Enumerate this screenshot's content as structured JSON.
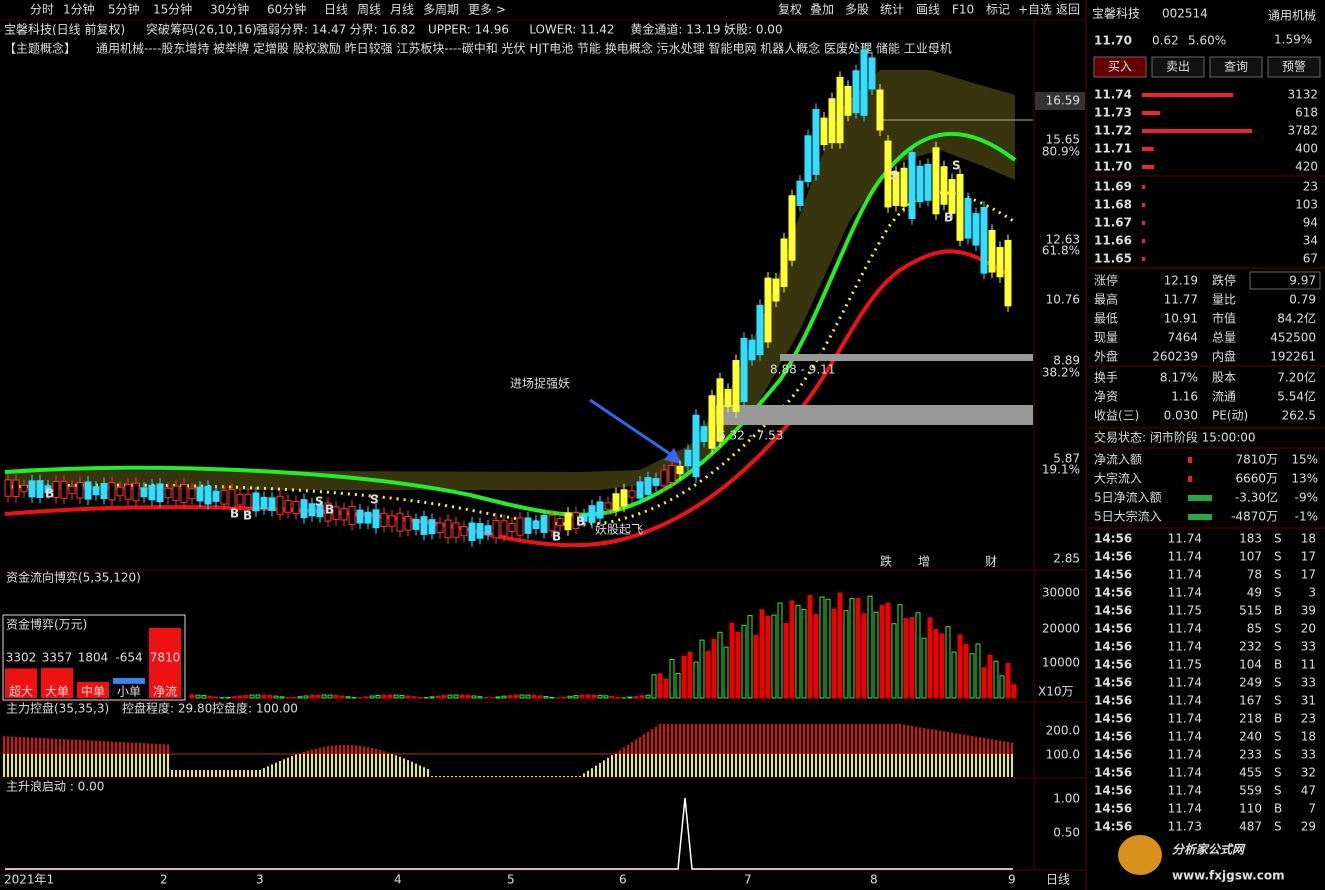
{
  "toolbar": {
    "periods": [
      "分时",
      "1分钟",
      "5分钟",
      "15分钟",
      "30分钟",
      "60分钟",
      "日线",
      "周线",
      "月线",
      "多周期",
      "更多 >"
    ],
    "tools": [
      "复权",
      "叠加",
      "多股",
      "统计",
      "画线",
      "F10",
      "标记",
      "+自选",
      "返回"
    ]
  },
  "header": {
    "name": "宝馨科技(日线 前复权)",
    "indicator": "突破筹码(26,10,16)",
    "items": [
      {
        "text": "强弱分界: 14.47",
        "color": "#ff3333"
      },
      {
        "text": "分界: 16.82",
        "color": "#33ff33"
      },
      {
        "text": "UPPER: 14.96",
        "color": "#33ff33"
      },
      {
        "text": "LOWER: 11.42",
        "color": "#ff3333"
      },
      {
        "text": "黄金通道: 13.19",
        "color": "#ffff33"
      },
      {
        "text": "妖股: 0.00",
        "color": "#ffff33"
      }
    ]
  },
  "concepts": {
    "label": "【主题概念】",
    "list": "通用机械----股东增持 被举牌 定增股 股权激励 昨日较强 江苏板块----碳中和 光伏 HJT电池 节能 换电概念 污水处理 智能电网 机器人概念 医废处理 储能 工业母机"
  },
  "price_axis": [
    "16.59",
    "15.65",
    "80.9%",
    "12.63",
    "61.8%",
    "10.76",
    "8.89",
    "38.2%",
    "5.87",
    "19.1%",
    "2.85"
  ],
  "annotations": {
    "callout": "进场捉强妖",
    "zone1": "8.88 - 9.11",
    "zone2": "6.32 - 7.53",
    "takeoff": "妖股起飞",
    "tags": [
      "跌",
      "增",
      "财"
    ],
    "markers": [
      "B",
      "B",
      "B",
      "B",
      "S",
      "S",
      "B",
      "B",
      "S",
      "B",
      "S"
    ]
  },
  "flow_panel": {
    "title": "资金流向博弈(5,35,120)",
    "box_title": "资金博弈(万元)",
    "bars": [
      {
        "label": "超大",
        "value": 3302
      },
      {
        "label": "大单",
        "value": 3357
      },
      {
        "label": "中单",
        "value": 1804
      },
      {
        "label": "小单",
        "value": -654
      },
      {
        "label": "净流",
        "value": 7810
      }
    ],
    "ticks": [
      "30000",
      "20000",
      "10000"
    ],
    "unit": "X10万"
  },
  "control_panel": {
    "title": "主力控盘(35,35,3)",
    "degree": "控盘程度: 29.80",
    "level": "控盘度: 100.00",
    "ticks": [
      "200.0",
      "100.0"
    ]
  },
  "wave_panel": {
    "title": "主升浪启动 : 0.00",
    "ticks": [
      "1.00",
      "0.50"
    ]
  },
  "date_axis": {
    "labels": [
      "2021年1",
      "2",
      "3",
      "4",
      "5",
      "6",
      "7",
      "8",
      "9"
    ],
    "period": "日线"
  },
  "quote": {
    "name": "宝馨科技",
    "code": "002514",
    "industry": "通用机械",
    "price": "11.70",
    "change": "0.62",
    "pct": "5.60%",
    "ratio": "1.59%",
    "buttons": [
      "买入",
      "卖出",
      "查询",
      "预警"
    ],
    "sell": [
      {
        "price": "11.74",
        "volume": 3132
      },
      {
        "price": "11.73",
        "volume": 618
      },
      {
        "price": "11.72",
        "volume": 3782
      },
      {
        "price": "11.71",
        "volume": 400
      },
      {
        "price": "11.70",
        "volume": 420
      }
    ],
    "buy": [
      {
        "price": "11.69",
        "volume": 23
      },
      {
        "price": "11.68",
        "volume": 103
      },
      {
        "price": "11.67",
        "volume": 94
      },
      {
        "price": "11.66",
        "volume": 34
      },
      {
        "price": "11.65",
        "volume": 67
      }
    ],
    "stats": [
      [
        "涨停",
        "12.19",
        "跌停",
        "9.97"
      ],
      [
        "最高",
        "11.77",
        "量比",
        "0.79"
      ],
      [
        "最低",
        "10.91",
        "市值",
        "84.2亿"
      ],
      [
        "现量",
        "7464",
        "总量",
        "452500"
      ],
      [
        "外盘",
        "260239",
        "内盘",
        "192261"
      ],
      [
        "换手",
        "8.17%",
        "股本",
        "7.20亿"
      ],
      [
        "净资",
        "1.16",
        "流通",
        "5.54亿"
      ],
      [
        "收益(三)",
        "0.030",
        "PE(动)",
        "262.5"
      ]
    ],
    "status": "交易状态: 闭市阶段 15:00:00",
    "flows": [
      [
        "净流入额",
        "7810万",
        "15%"
      ],
      [
        "大宗流入",
        "6660万",
        "13%"
      ],
      [
        "5日净流入额",
        "-3.30亿",
        "-9%"
      ],
      [
        "5日大宗流入",
        "-4870万",
        "-1%"
      ]
    ],
    "ticks": [
      [
        "14:56",
        "11.74",
        "183",
        "S",
        "18"
      ],
      [
        "14:56",
        "11.74",
        "107",
        "S",
        "17"
      ],
      [
        "14:56",
        "11.74",
        "78",
        "S",
        "17"
      ],
      [
        "14:56",
        "11.74",
        "49",
        "S",
        "3"
      ],
      [
        "14:56",
        "11.75",
        "515",
        "B",
        "39"
      ],
      [
        "14:56",
        "11.74",
        "85",
        "S",
        "20"
      ],
      [
        "14:56",
        "11.74",
        "232",
        "S",
        "33"
      ],
      [
        "14:56",
        "11.75",
        "104",
        "B",
        "11"
      ],
      [
        "14:56",
        "11.74",
        "249",
        "S",
        "33"
      ],
      [
        "14:56",
        "11.74",
        "167",
        "S",
        "31"
      ],
      [
        "14:56",
        "11.74",
        "218",
        "B",
        "23"
      ],
      [
        "14:56",
        "11.74",
        "240",
        "S",
        "18"
      ],
      [
        "14:56",
        "11.74",
        "233",
        "S",
        "33"
      ],
      [
        "14:56",
        "11.74",
        "455",
        "S",
        "32"
      ],
      [
        "14:56",
        "11.74",
        "559",
        "S",
        "47"
      ],
      [
        "14:56",
        "11.74",
        "110",
        "B",
        "7"
      ],
      [
        "14:56",
        "11.73",
        "487",
        "S",
        "29"
      ]
    ]
  },
  "watermark": {
    "name": "分析家公式网",
    "url": "www.fxjgsw.com"
  }
}
